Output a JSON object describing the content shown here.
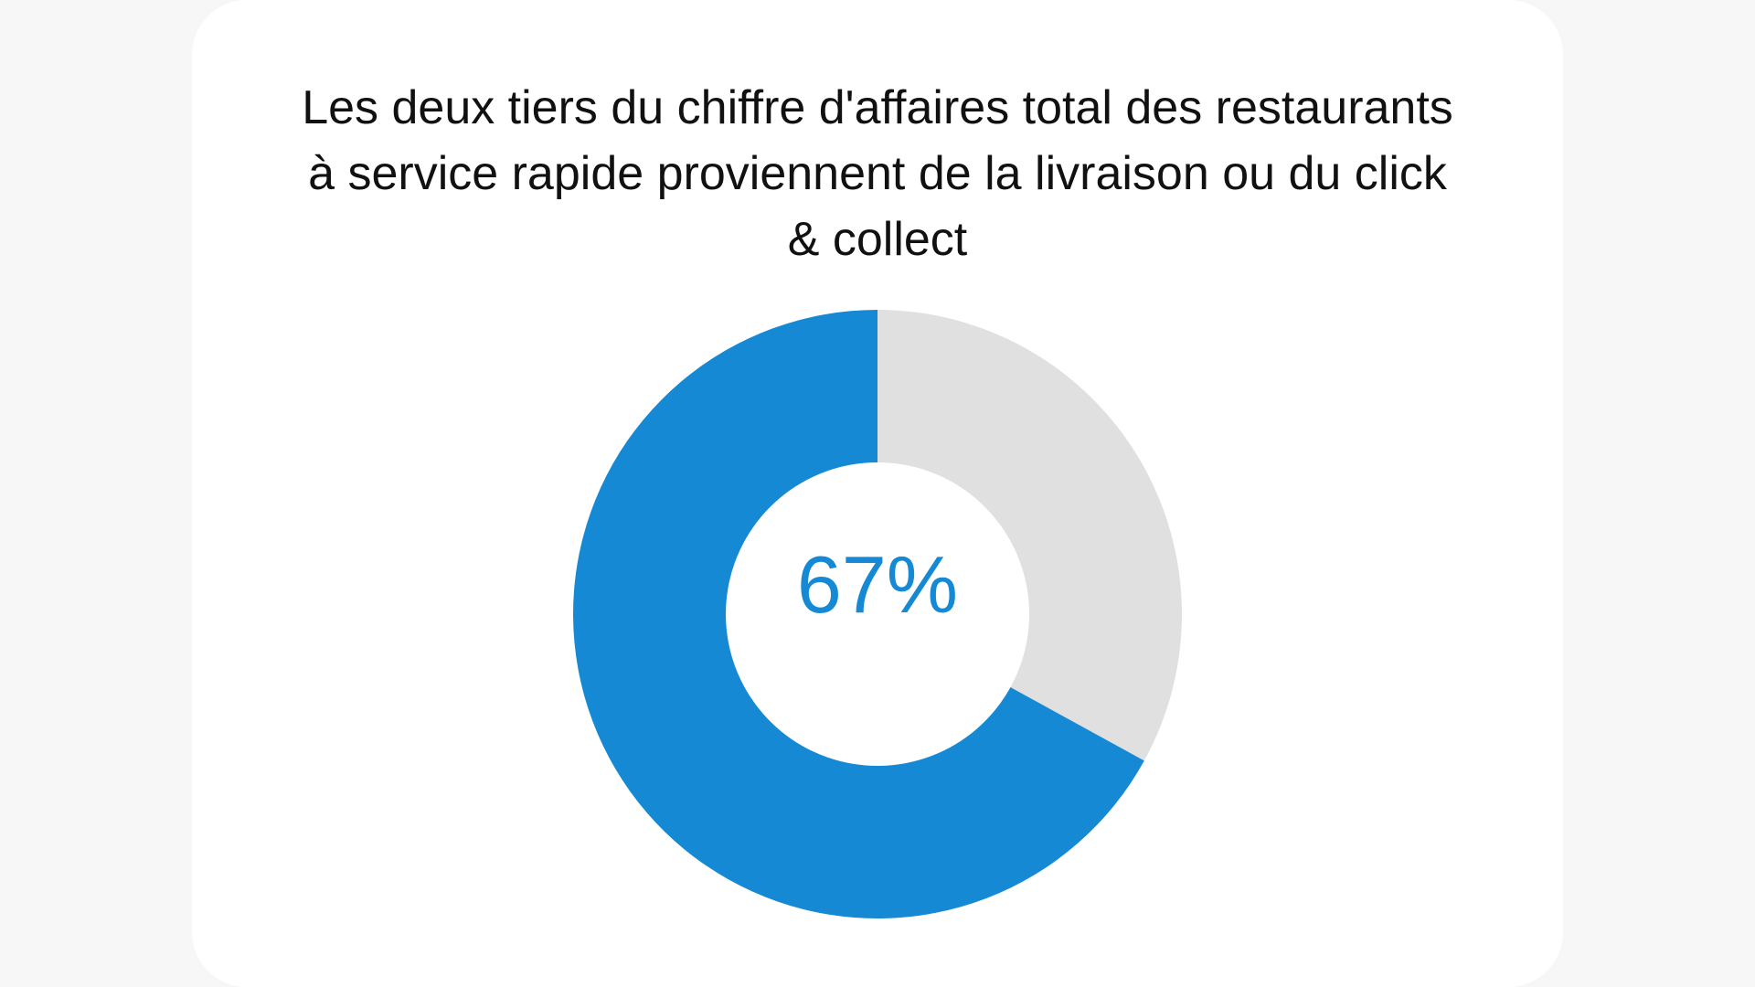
{
  "chart_data": {
    "type": "pie",
    "style": "donut",
    "title": "Les deux tiers du chiffre d'affaires total des restaurants à service rapide proviennent de la livraison ou du click & collect",
    "center_label": "67%",
    "slices": [
      {
        "value": 67,
        "color": "#1589d4"
      },
      {
        "value": 33,
        "color": "#e0e0e0"
      }
    ]
  },
  "colors": {
    "accent": "#1589d4",
    "remainder": "#e0e0e0",
    "background": "#ffffff",
    "title_text": "#111111"
  }
}
